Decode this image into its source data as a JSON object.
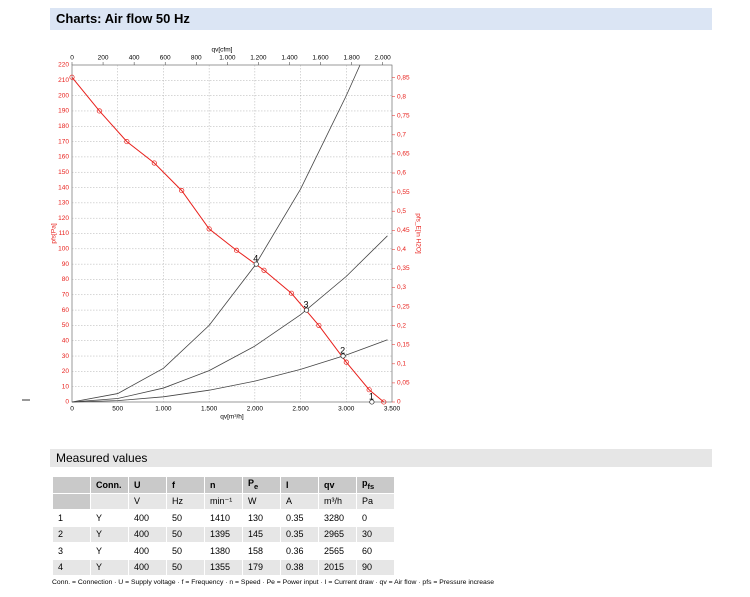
{
  "header": {
    "title": "Charts: Air flow 50 Hz"
  },
  "chart_data": {
    "type": "line",
    "x_label": "qv[m³/h]",
    "x2_label": "qv[cfm]",
    "y_label": "pfs[Pa]",
    "y2_label": "pfs_E[in H2O]",
    "xlim": [
      0,
      3500
    ],
    "xticks": [
      0,
      500,
      {
        "value": 1000,
        "label": "1.000"
      },
      {
        "value": 1500,
        "label": "1.500"
      },
      {
        "value": 2000,
        "label": "2.000"
      },
      {
        "value": 2500,
        "label": "2.500"
      },
      {
        "value": 3000,
        "label": "3.000"
      },
      {
        "value": 3500,
        "label": "3.500"
      }
    ],
    "x2lim": [
      0,
      2060
    ],
    "x2ticks": [
      0,
      200,
      400,
      600,
      800,
      {
        "value": 1000,
        "label": "1.000"
      },
      {
        "value": 1200,
        "label": "1.200"
      },
      {
        "value": 1400,
        "label": "1.400"
      },
      {
        "value": 1600,
        "label": "1.600"
      },
      {
        "value": 1800,
        "label": "1.800"
      },
      {
        "value": 2000,
        "label": "2.000"
      }
    ],
    "ylim": [
      0,
      220
    ],
    "yticks": [
      0,
      10,
      20,
      30,
      40,
      50,
      60,
      70,
      80,
      90,
      100,
      110,
      120,
      130,
      140,
      150,
      160,
      170,
      180,
      190,
      200,
      210,
      220
    ],
    "y2lim": [
      0,
      0.883
    ],
    "y2ticks": [
      0,
      {
        "value": 0.05,
        "label": "0,05"
      },
      {
        "value": 0.1,
        "label": "0,1"
      },
      {
        "value": 0.15,
        "label": "0,15"
      },
      {
        "value": 0.2,
        "label": "0,2"
      },
      {
        "value": 0.25,
        "label": "0,25"
      },
      {
        "value": 0.3,
        "label": "0,3"
      },
      {
        "value": 0.35,
        "label": "0,35"
      },
      {
        "value": 0.4,
        "label": "0,4"
      },
      {
        "value": 0.45,
        "label": "0,45"
      },
      {
        "value": 0.5,
        "label": "0,5"
      },
      {
        "value": 0.55,
        "label": "0,55"
      },
      {
        "value": 0.6,
        "label": "0,6"
      },
      {
        "value": 0.65,
        "label": "0,65"
      },
      {
        "value": 0.7,
        "label": "0,7"
      },
      {
        "value": 0.75,
        "label": "0,75"
      },
      {
        "value": 0.8,
        "label": "0,8"
      },
      {
        "value": 0.85,
        "label": "0,85"
      }
    ],
    "grid": true,
    "series": [
      {
        "color": "#e8201c",
        "markers": true,
        "x": [
          0,
          300,
          600,
          900,
          1200,
          1500,
          1800,
          2100,
          2400,
          2700,
          3000,
          3250,
          3410
        ],
        "values": [
          212,
          190,
          170,
          156,
          138,
          113,
          99,
          86,
          71,
          50,
          26,
          8,
          0
        ]
      },
      {
        "color": "#444444",
        "markers": false,
        "x": [
          0,
          500,
          1000,
          1500,
          2000,
          2500,
          3000,
          3150
        ],
        "values": [
          0,
          5.5,
          22,
          50,
          89,
          139,
          200,
          220
        ]
      },
      {
        "color": "#444444",
        "markers": false,
        "x": [
          0,
          500,
          1000,
          1500,
          2000,
          2500,
          3000,
          3450
        ],
        "values": [
          0,
          2.3,
          9.1,
          20.5,
          36.5,
          57,
          82,
          108.5
        ]
      },
      {
        "color": "#444444",
        "markers": false,
        "x": [
          0,
          500,
          1000,
          1500,
          2000,
          2500,
          3000,
          3450
        ],
        "values": [
          0,
          0.9,
          3.4,
          7.7,
          13.6,
          21.3,
          30.7,
          40.6
        ]
      }
    ],
    "points": [
      {
        "label": "1",
        "x": 3280,
        "y": 0
      },
      {
        "label": "2",
        "x": 2965,
        "y": 30
      },
      {
        "label": "3",
        "x": 2565,
        "y": 60
      },
      {
        "label": "4",
        "x": 2015,
        "y": 90
      }
    ]
  },
  "section": {
    "title": "Measured values"
  },
  "table": {
    "header": [
      null,
      "Conn.",
      "U",
      "f",
      "n",
      {
        "text": "P",
        "sub": "e"
      },
      "I",
      "qv",
      {
        "text": "p",
        "sub": "fs"
      }
    ],
    "units": [
      null,
      null,
      "V",
      "Hz",
      "min⁻¹",
      "W",
      "A",
      "m³/h",
      "Pa"
    ],
    "rows": [
      [
        1,
        "Y",
        400,
        50,
        1410,
        130,
        0.35,
        3280,
        0
      ],
      [
        2,
        "Y",
        400,
        50,
        1395,
        145,
        0.35,
        2965,
        30
      ],
      [
        3,
        "Y",
        400,
        50,
        1380,
        158,
        0.36,
        2565,
        60
      ],
      [
        4,
        "Y",
        400,
        50,
        1355,
        179,
        0.38,
        2015,
        90
      ]
    ]
  },
  "footnote": "Conn. = Connection · U = Supply voltage · f = Frequency · n = Speed · Pe = Power input · I = Current draw · qv = Air flow · pfs = Pressure increase"
}
